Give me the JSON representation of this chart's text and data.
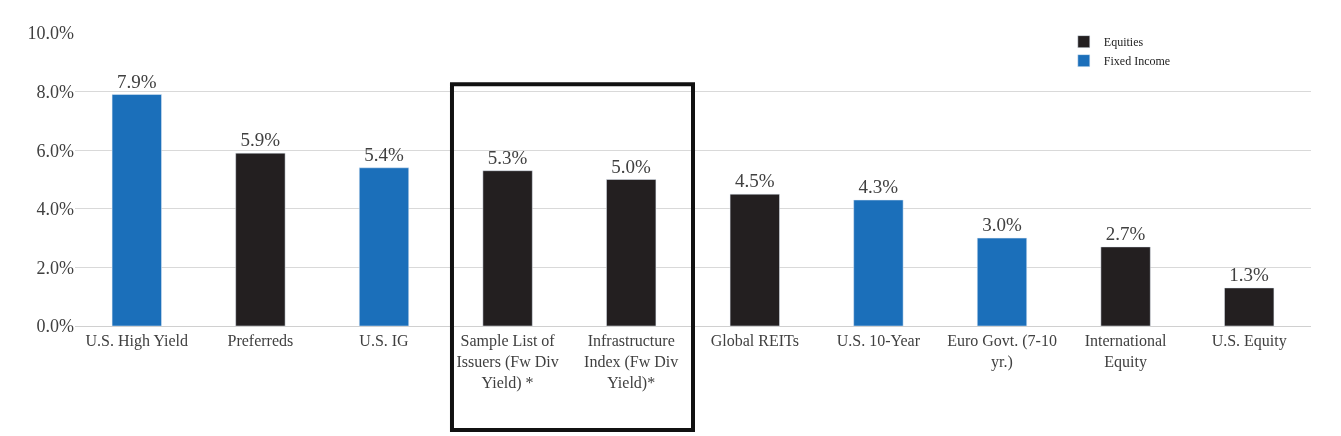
{
  "chart_data": {
    "type": "bar",
    "categories": [
      "U.S. High Yield",
      "Preferreds",
      "U.S. IG",
      "Sample List of Issuers (Fw Div Yield) *",
      "Infrastructure Index (Fw Div Yield)*",
      "Global REITs",
      "U.S. 10-Year",
      "Euro Govt. (7-10 yr.)",
      "International Equity",
      "U.S. Equity"
    ],
    "series": [
      {
        "name": "Equities",
        "color": "#231f20",
        "values": [
          null,
          5.9,
          null,
          5.3,
          5.0,
          4.5,
          null,
          null,
          2.7,
          1.3
        ],
        "value_labels": [
          null,
          "5.9%",
          null,
          "5.3%",
          "5.0%",
          "4.5%",
          null,
          null,
          "2.7%",
          "1.3%"
        ]
      },
      {
        "name": "Fixed Income",
        "color": "#1b6fba",
        "values": [
          7.9,
          null,
          5.4,
          null,
          null,
          null,
          4.3,
          3.0,
          null,
          null
        ],
        "value_labels": [
          "7.9%",
          null,
          "5.4%",
          null,
          null,
          null,
          "4.3%",
          "3.0%",
          null,
          null
        ]
      }
    ],
    "ylim": [
      0,
      10
    ],
    "yticks": [
      {
        "value": 0,
        "label": "0.0%"
      },
      {
        "value": 2,
        "label": "2.0%"
      },
      {
        "value": 4,
        "label": "4.0%"
      },
      {
        "value": 6,
        "label": "6.0%"
      },
      {
        "value": 8,
        "label": "8.0%"
      },
      {
        "value": 10,
        "label": "10.0%"
      }
    ],
    "grid": "y",
    "legend": "top right"
  }
}
